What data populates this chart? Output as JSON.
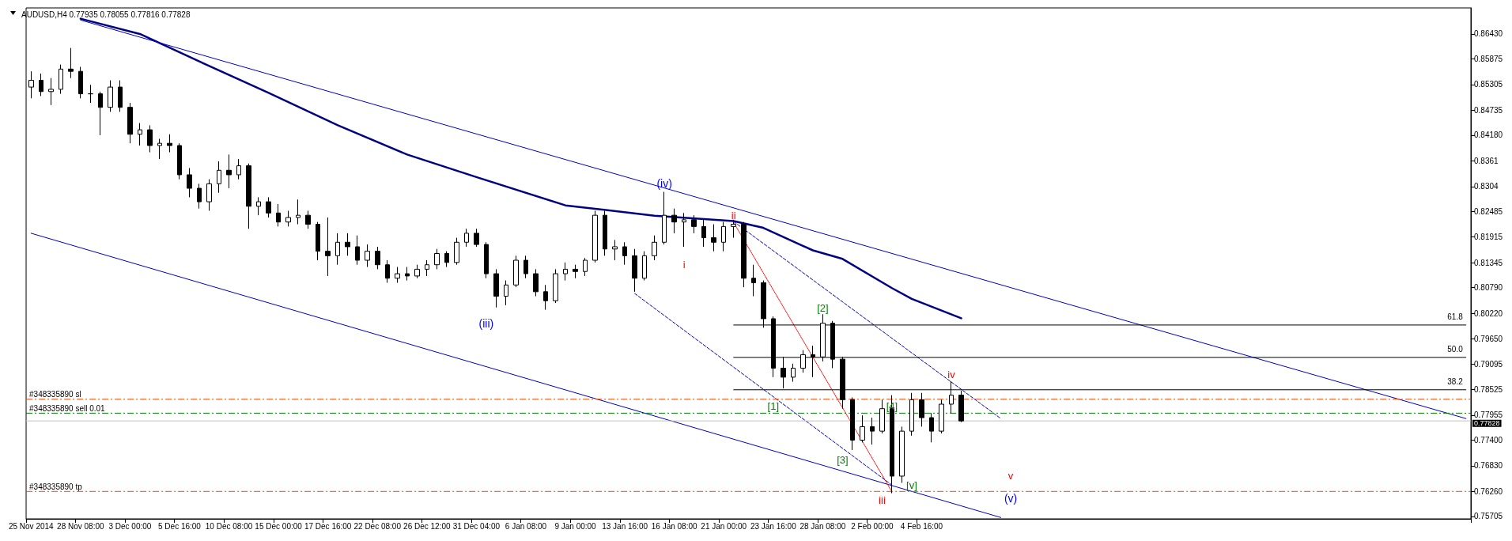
{
  "chart_data": {
    "type": "candlestick",
    "title": "AUDUSD,H4 0.77935 0.78055 0.77816 0.77828",
    "categories": [
      "25 Nov 2014",
      null,
      null,
      null,
      null,
      "28 Nov 08:00",
      null,
      null,
      null,
      null,
      "3 Dec 00:00",
      null,
      null,
      null,
      null,
      "5 Dec 16:00",
      null,
      null,
      null,
      null,
      "10 Dec 08:00",
      null,
      null,
      null,
      null,
      "15 Dec 00:00",
      null,
      null,
      null,
      null,
      "17 Dec 16:00",
      null,
      null,
      null,
      null,
      "22 Dec 08:00",
      null,
      null,
      null,
      null,
      "26 Dec 12:00",
      null,
      null,
      null,
      null,
      "31 Dec 04:00",
      null,
      null,
      null,
      null,
      "6 Jan 08:00",
      null,
      null,
      null,
      null,
      "9 Jan 00:00",
      null,
      null,
      null,
      null,
      "13 Jan 16:00",
      null,
      null,
      null,
      null,
      "16 Jan 08:00",
      null,
      null,
      null,
      null,
      "21 Jan 00:00",
      null,
      null,
      null,
      null,
      "23 Jan 16:00",
      null,
      null,
      null,
      null,
      "28 Jan 08:00",
      null,
      null,
      null,
      null,
      "2 Feb 00:00",
      null,
      null,
      null,
      null,
      "4 Feb 16:00",
      null,
      null,
      null,
      null,
      null,
      null,
      null,
      null,
      null,
      null,
      null,
      null,
      null,
      null,
      null,
      null,
      null,
      null,
      null,
      null,
      null,
      null,
      null,
      null,
      null,
      null,
      null,
      null,
      null,
      null,
      null,
      null,
      null,
      null,
      null,
      null,
      null,
      null,
      null,
      null,
      null,
      null,
      null,
      null,
      null,
      null,
      null,
      null,
      null,
      null,
      null,
      null,
      null,
      null,
      null
    ],
    "ohlc": [
      [
        0.8525,
        0.856,
        0.85,
        0.854
      ],
      [
        0.854,
        0.8555,
        0.8505,
        0.8515
      ],
      [
        0.8515,
        0.8545,
        0.8485,
        0.852
      ],
      [
        0.852,
        0.8575,
        0.851,
        0.8565
      ],
      [
        0.8565,
        0.8612,
        0.8545,
        0.856
      ],
      [
        0.856,
        0.857,
        0.85,
        0.851
      ],
      [
        0.851,
        0.853,
        0.849,
        0.851
      ],
      [
        0.851,
        0.8515,
        0.8418,
        0.848
      ],
      [
        0.848,
        0.854,
        0.847,
        0.8525
      ],
      [
        0.8525,
        0.854,
        0.847,
        0.848
      ],
      [
        0.848,
        0.849,
        0.84,
        0.842
      ],
      [
        0.842,
        0.8445,
        0.8395,
        0.843
      ],
      [
        0.843,
        0.844,
        0.838,
        0.8395
      ],
      [
        0.8395,
        0.841,
        0.8365,
        0.84
      ],
      [
        0.84,
        0.842,
        0.838,
        0.8395
      ],
      [
        0.8395,
        0.84,
        0.832,
        0.833
      ],
      [
        0.833,
        0.8345,
        0.828,
        0.83
      ],
      [
        0.83,
        0.831,
        0.8255,
        0.827
      ],
      [
        0.827,
        0.832,
        0.825,
        0.831
      ],
      [
        0.831,
        0.836,
        0.829,
        0.834
      ],
      [
        0.834,
        0.8375,
        0.83,
        0.833
      ],
      [
        0.833,
        0.8365,
        0.832,
        0.835
      ],
      [
        0.835,
        0.8355,
        0.821,
        0.826
      ],
      [
        0.826,
        0.828,
        0.824,
        0.827
      ],
      [
        0.827,
        0.828,
        0.8235,
        0.8245
      ],
      [
        0.8245,
        0.8265,
        0.8215,
        0.8225
      ],
      [
        0.8225,
        0.825,
        0.8215,
        0.8235
      ],
      [
        0.8235,
        0.8275,
        0.822,
        0.824
      ],
      [
        0.824,
        0.825,
        0.821,
        0.822
      ],
      [
        0.822,
        0.8225,
        0.814,
        0.816
      ],
      [
        0.816,
        0.8235,
        0.8105,
        0.815
      ],
      [
        0.815,
        0.82,
        0.813,
        0.818
      ],
      [
        0.818,
        0.82,
        0.815,
        0.817
      ],
      [
        0.817,
        0.8195,
        0.813,
        0.814
      ],
      [
        0.814,
        0.8175,
        0.8125,
        0.816
      ],
      [
        0.816,
        0.817,
        0.812,
        0.813
      ],
      [
        0.813,
        0.814,
        0.809,
        0.81
      ],
      [
        0.81,
        0.8125,
        0.809,
        0.811
      ],
      [
        0.811,
        0.8125,
        0.8095,
        0.8105
      ],
      [
        0.8105,
        0.813,
        0.81,
        0.812
      ],
      [
        0.812,
        0.814,
        0.8105,
        0.813
      ],
      [
        0.813,
        0.8165,
        0.812,
        0.8155
      ],
      [
        0.8155,
        0.816,
        0.8125,
        0.8135
      ],
      [
        0.8135,
        0.819,
        0.813,
        0.818
      ],
      [
        0.818,
        0.821,
        0.817,
        0.82
      ],
      [
        0.82,
        0.821,
        0.817,
        0.8175
      ],
      [
        0.8175,
        0.818,
        0.81,
        0.811
      ],
      [
        0.811,
        0.812,
        0.8035,
        0.806
      ],
      [
        0.806,
        0.8095,
        0.804,
        0.8085
      ],
      [
        0.8085,
        0.815,
        0.808,
        0.814
      ],
      [
        0.814,
        0.815,
        0.81,
        0.811
      ],
      [
        0.811,
        0.812,
        0.806,
        0.807
      ],
      [
        0.807,
        0.8085,
        0.803,
        0.805
      ],
      [
        0.805,
        0.812,
        0.8045,
        0.811
      ],
      [
        0.811,
        0.8135,
        0.8095,
        0.812
      ],
      [
        0.812,
        0.813,
        0.81,
        0.8115
      ],
      [
        0.8115,
        0.8145,
        0.8105,
        0.814
      ],
      [
        0.814,
        0.825,
        0.8135,
        0.824
      ],
      [
        0.824,
        0.825,
        0.815,
        0.8165
      ],
      [
        0.8165,
        0.8185,
        0.814,
        0.817
      ],
      [
        0.817,
        0.818,
        0.813,
        0.815
      ],
      [
        0.815,
        0.8165,
        0.807,
        0.81
      ],
      [
        0.81,
        0.816,
        0.8095,
        0.815
      ],
      [
        0.815,
        0.8195,
        0.814,
        0.818
      ],
      [
        0.818,
        0.8292,
        0.8175,
        0.824
      ],
      [
        0.824,
        0.8255,
        0.82,
        0.8225
      ],
      [
        0.8225,
        0.8245,
        0.817,
        0.823
      ],
      [
        0.823,
        0.824,
        0.82,
        0.8215
      ],
      [
        0.8215,
        0.823,
        0.817,
        0.819
      ],
      [
        0.819,
        0.822,
        0.816,
        0.818
      ],
      [
        0.818,
        0.8225,
        0.816,
        0.8215
      ],
      [
        0.8215,
        0.823,
        0.819,
        0.822
      ],
      [
        0.822,
        0.8225,
        0.808,
        0.81
      ],
      [
        0.81,
        0.813,
        0.806,
        0.809
      ],
      [
        0.809,
        0.8095,
        0.799,
        0.801
      ],
      [
        0.801,
        0.8015,
        0.788,
        0.79
      ],
      [
        0.79,
        0.7925,
        0.7855,
        0.788
      ],
      [
        0.788,
        0.791,
        0.787,
        0.79
      ],
      [
        0.79,
        0.794,
        0.789,
        0.793
      ],
      [
        0.793,
        0.795,
        0.788,
        0.7925
      ],
      [
        0.7925,
        0.802,
        0.7915,
        0.8
      ],
      [
        0.8,
        0.8005,
        0.79,
        0.792
      ],
      [
        0.792,
        0.7925,
        0.781,
        0.783
      ],
      [
        0.783,
        0.7835,
        0.7718,
        0.774
      ],
      [
        0.774,
        0.7795,
        0.7735,
        0.777
      ],
      [
        0.777,
        0.779,
        0.773,
        0.776
      ],
      [
        0.776,
        0.783,
        0.7755,
        0.781
      ],
      [
        0.781,
        0.784,
        0.7622,
        0.766
      ],
      [
        0.766,
        0.777,
        0.7645,
        0.776
      ],
      [
        0.776,
        0.7845,
        0.775,
        0.783
      ],
      [
        0.783,
        0.7845,
        0.777,
        0.779
      ],
      [
        0.779,
        0.78,
        0.7735,
        0.776
      ],
      [
        0.776,
        0.783,
        0.7755,
        0.782
      ],
      [
        0.782,
        0.7871,
        0.78,
        0.784
      ],
      [
        0.784,
        0.785,
        0.778,
        0.77828
      ],
      null,
      null,
      null,
      null,
      null,
      null,
      null,
      null,
      null,
      null,
      null,
      null,
      null,
      null,
      null,
      null,
      null,
      null,
      null,
      null,
      null,
      null,
      null,
      null,
      null,
      null,
      null,
      null,
      null,
      null,
      null,
      null,
      null,
      null,
      null,
      null,
      null,
      null,
      null,
      null,
      null,
      null,
      null,
      null,
      null,
      null,
      null,
      null,
      null,
      null,
      null
    ],
    "series": [
      {
        "type": "line",
        "color": "#000080",
        "line_style": "solid",
        "values": [
          null,
          null,
          null,
          null,
          null,
          0.8677,
          null,
          null,
          null,
          null,
          null,
          0.8643,
          null,
          null,
          null,
          null,
          null,
          0.8582,
          null,
          null,
          null,
          null,
          null,
          null,
          0.8512,
          null,
          null,
          null,
          null,
          null,
          null,
          0.844,
          null,
          null,
          null,
          null,
          null,
          null,
          0.8375,
          null,
          null,
          null,
          null,
          null,
          null,
          0.8325,
          null,
          null,
          null,
          null,
          null,
          null,
          null,
          null,
          0.8262,
          null,
          null,
          null,
          null,
          null,
          null,
          null,
          null,
          0.8239,
          null,
          null,
          null,
          null,
          null,
          null,
          null,
          0.8227,
          null,
          null,
          0.8212,
          null,
          null,
          null,
          null,
          0.8162,
          null,
          null,
          0.8143,
          null,
          null,
          null,
          null,
          0.8078,
          null,
          0.8054,
          null,
          null,
          null,
          null,
          0.8011,
          null,
          null,
          null,
          null,
          null,
          null,
          null,
          null,
          null,
          null,
          null,
          null,
          null,
          null,
          null,
          null,
          null,
          null,
          null,
          null,
          null,
          null,
          null,
          null,
          null,
          null,
          null,
          null,
          null,
          null,
          null,
          null,
          null,
          null,
          null,
          null,
          null,
          null,
          null,
          null,
          null,
          null,
          null,
          null,
          null,
          null,
          null,
          null,
          null,
          null,
          null
        ]
      },
      {
        "type": "line",
        "color": "#0000c0",
        "line_style": "solid",
        "values": [
          null,
          null,
          null,
          null,
          null,
          0.8674,
          null,
          null,
          null,
          null,
          null,
          null,
          null,
          null,
          null,
          null,
          null,
          null,
          null,
          null,
          null,
          null,
          null,
          null,
          null,
          null,
          null,
          null,
          null,
          null,
          null,
          null,
          null,
          null,
          null,
          null,
          null,
          null,
          null,
          null,
          null,
          null,
          null,
          null,
          null,
          null,
          null,
          null,
          null,
          null,
          null,
          null,
          null,
          null,
          null,
          null,
          null,
          null,
          null,
          null,
          null,
          null,
          null,
          null,
          null,
          null,
          null,
          null,
          null,
          null,
          null,
          null,
          null,
          null,
          null,
          null,
          null,
          null,
          null,
          null,
          null,
          null,
          null,
          null,
          null,
          null,
          null,
          null,
          null,
          null,
          null,
          null,
          null,
          null,
          null,
          null,
          null,
          null,
          null,
          null,
          null,
          null,
          null,
          null,
          null,
          null,
          null,
          null,
          null,
          null,
          null,
          null,
          null,
          null,
          null,
          null,
          null,
          null,
          null,
          null,
          null,
          null,
          null,
          null,
          null,
          null,
          null,
          null,
          null,
          null,
          null,
          null,
          null,
          null,
          null,
          null,
          null,
          null,
          null,
          null,
          null,
          null,
          null,
          null,
          null,
          0.7788
        ]
      },
      {
        "type": "line",
        "color": "#0000c0",
        "line_style": "solid",
        "values": [
          0.82,
          null,
          null,
          null,
          null,
          null,
          null,
          null,
          null,
          null,
          null,
          null,
          null,
          null,
          null,
          null,
          null,
          null,
          null,
          null,
          null,
          null,
          null,
          null,
          null,
          null,
          null,
          null,
          null,
          null,
          null,
          null,
          null,
          null,
          null,
          null,
          null,
          null,
          null,
          null,
          null,
          null,
          null,
          null,
          null,
          null,
          null,
          null,
          null,
          null,
          null,
          null,
          null,
          null,
          null,
          null,
          null,
          null,
          null,
          null,
          null,
          null,
          null,
          null,
          null,
          null,
          null,
          null,
          null,
          null,
          null,
          null,
          null,
          null,
          null,
          null,
          null,
          null,
          null,
          null,
          null,
          null,
          null,
          null,
          null,
          null,
          null,
          null,
          null,
          null,
          null,
          null,
          null,
          null,
          null,
          null,
          null,
          null,
          0.7568,
          null,
          null,
          null,
          null,
          null,
          null,
          null,
          null,
          null,
          null,
          null,
          null,
          null,
          null,
          null,
          null,
          null,
          null,
          null,
          null,
          null,
          null,
          null,
          null,
          null,
          null,
          null,
          null,
          null,
          null,
          null,
          null,
          null,
          null,
          null,
          null,
          null,
          null,
          null,
          null,
          null,
          null,
          null,
          null,
          null,
          null,
          null
        ]
      },
      {
        "type": "line",
        "color": "#0000c0",
        "line_style": "dashed",
        "values": [
          null,
          null,
          null,
          null,
          null,
          null,
          null,
          null,
          null,
          null,
          null,
          null,
          null,
          null,
          null,
          null,
          null,
          null,
          null,
          null,
          null,
          null,
          null,
          null,
          null,
          null,
          null,
          null,
          null,
          null,
          null,
          null,
          null,
          null,
          null,
          null,
          null,
          null,
          null,
          null,
          null,
          null,
          null,
          null,
          null,
          null,
          null,
          null,
          null,
          null,
          null,
          null,
          null,
          null,
          null,
          null,
          null,
          null,
          null,
          null,
          null,
          0.8066,
          null,
          null,
          null,
          null,
          null,
          null,
          null,
          null,
          null,
          null,
          null,
          null,
          null,
          null,
          null,
          null,
          null,
          null,
          null,
          null,
          null,
          null,
          null,
          null,
          null,
          0.764,
          null,
          null,
          null,
          null,
          null,
          null,
          null,
          null,
          null,
          null,
          null,
          null,
          null,
          null,
          null,
          null,
          null,
          null,
          null,
          null,
          null,
          null,
          null,
          null,
          null,
          null,
          null,
          null,
          null,
          null,
          null,
          null,
          null,
          null,
          null,
          null,
          null,
          null,
          null,
          null,
          null,
          null,
          null,
          null,
          null,
          null,
          null,
          null,
          null,
          null,
          null,
          null,
          null,
          null,
          null,
          null,
          null,
          null
        ]
      },
      {
        "type": "line",
        "color": "#0000c0",
        "line_style": "dashed",
        "values": [
          null,
          null,
          null,
          null,
          null,
          null,
          null,
          null,
          null,
          null,
          null,
          null,
          null,
          null,
          null,
          null,
          null,
          null,
          null,
          null,
          null,
          null,
          null,
          null,
          null,
          null,
          null,
          null,
          null,
          null,
          null,
          null,
          null,
          null,
          null,
          null,
          null,
          null,
          null,
          null,
          null,
          null,
          null,
          null,
          null,
          null,
          null,
          null,
          null,
          null,
          null,
          null,
          null,
          null,
          null,
          null,
          null,
          null,
          null,
          null,
          null,
          null,
          null,
          null,
          null,
          null,
          null,
          null,
          null,
          null,
          null,
          0.8226,
          null,
          null,
          null,
          null,
          null,
          null,
          null,
          null,
          null,
          null,
          null,
          null,
          null,
          null,
          null,
          null,
          null,
          null,
          null,
          null,
          null,
          null,
          null,
          null,
          null,
          null,
          0.7788,
          null,
          null,
          null,
          null,
          null,
          null,
          null,
          null,
          null,
          null,
          null,
          null,
          null,
          null,
          null,
          null,
          null,
          null,
          null,
          null,
          null,
          null,
          null,
          null,
          null,
          null,
          null,
          null,
          null,
          null,
          null,
          null,
          null,
          null,
          null,
          null,
          null,
          null,
          null,
          null,
          null,
          null,
          null,
          null,
          null,
          null,
          null
        ]
      },
      {
        "type": "line",
        "color": "#ff0000",
        "line_style": "dotted",
        "values": [
          null,
          null,
          null,
          null,
          null,
          null,
          null,
          null,
          null,
          null,
          null,
          null,
          null,
          null,
          null,
          null,
          null,
          null,
          null,
          null,
          null,
          null,
          null,
          null,
          null,
          null,
          null,
          null,
          null,
          null,
          null,
          null,
          null,
          null,
          null,
          null,
          null,
          null,
          null,
          null,
          null,
          null,
          null,
          null,
          null,
          null,
          null,
          null,
          null,
          null,
          null,
          null,
          null,
          null,
          null,
          null,
          null,
          null,
          null,
          null,
          null,
          null,
          null,
          null,
          null,
          null,
          null,
          null,
          null,
          null,
          null,
          0.8224,
          null,
          null,
          null,
          null,
          null,
          null,
          null,
          null,
          null,
          null,
          null,
          null,
          null,
          null,
          null,
          0.7625,
          null,
          null,
          null,
          null,
          null,
          null,
          null,
          null,
          null,
          null,
          null,
          null,
          null,
          null,
          null,
          null,
          null,
          null,
          null,
          null,
          null,
          null,
          null,
          null,
          null,
          null,
          null,
          null,
          null,
          null,
          null,
          null,
          null,
          null,
          null,
          null,
          null,
          null,
          null,
          null,
          null,
          null,
          null,
          null,
          null,
          null,
          null,
          null,
          null,
          null,
          null,
          null,
          null,
          null,
          null,
          null,
          null,
          null
        ]
      },
      {
        "type": "line",
        "name": "61.8",
        "color": "#000000",
        "line_style": "solid",
        "values": [
          null,
          null,
          null,
          null,
          null,
          null,
          null,
          null,
          null,
          null,
          null,
          null,
          null,
          null,
          null,
          null,
          null,
          null,
          null,
          null,
          null,
          null,
          null,
          null,
          null,
          null,
          null,
          null,
          null,
          null,
          null,
          null,
          null,
          null,
          null,
          null,
          null,
          null,
          null,
          null,
          null,
          null,
          null,
          null,
          null,
          null,
          null,
          null,
          null,
          null,
          null,
          null,
          null,
          null,
          null,
          null,
          null,
          null,
          null,
          null,
          null,
          null,
          null,
          null,
          null,
          null,
          null,
          null,
          null,
          null,
          null,
          0.7996,
          null,
          null,
          null,
          null,
          null,
          null,
          null,
          null,
          null,
          null,
          null,
          null,
          null,
          null,
          null,
          null,
          null,
          null,
          null,
          null,
          null,
          null,
          null,
          null,
          null,
          null,
          null,
          null,
          null,
          null,
          null,
          null,
          null,
          null,
          null,
          null,
          null,
          null,
          null,
          null,
          null,
          null,
          null,
          null,
          null,
          null,
          null,
          null,
          null,
          null,
          null,
          null,
          null,
          null,
          null,
          null,
          null,
          null,
          null,
          null,
          null,
          null,
          null,
          null,
          null,
          null,
          null,
          null,
          null,
          null,
          null,
          null,
          null,
          0.7996
        ]
      },
      {
        "type": "line",
        "name": "50.0",
        "color": "#000000",
        "line_style": "solid",
        "values": [
          null,
          null,
          null,
          null,
          null,
          null,
          null,
          null,
          null,
          null,
          null,
          null,
          null,
          null,
          null,
          null,
          null,
          null,
          null,
          null,
          null,
          null,
          null,
          null,
          null,
          null,
          null,
          null,
          null,
          null,
          null,
          null,
          null,
          null,
          null,
          null,
          null,
          null,
          null,
          null,
          null,
          null,
          null,
          null,
          null,
          null,
          null,
          null,
          null,
          null,
          null,
          null,
          null,
          null,
          null,
          null,
          null,
          null,
          null,
          null,
          null,
          null,
          null,
          null,
          null,
          null,
          null,
          null,
          null,
          null,
          null,
          0.7924,
          null,
          null,
          null,
          null,
          null,
          null,
          null,
          null,
          null,
          null,
          null,
          null,
          null,
          null,
          null,
          null,
          null,
          null,
          null,
          null,
          null,
          null,
          null,
          null,
          null,
          null,
          null,
          null,
          null,
          null,
          null,
          null,
          null,
          null,
          null,
          null,
          null,
          null,
          null,
          null,
          null,
          null,
          null,
          null,
          null,
          null,
          null,
          null,
          null,
          null,
          null,
          null,
          null,
          null,
          null,
          null,
          null,
          null,
          null,
          null,
          null,
          null,
          null,
          null,
          null,
          null,
          null,
          null,
          null,
          null,
          null,
          null,
          null,
          0.7924
        ]
      },
      {
        "type": "line",
        "name": "38.2",
        "color": "#000000",
        "line_style": "solid",
        "values": [
          null,
          null,
          null,
          null,
          null,
          null,
          null,
          null,
          null,
          null,
          null,
          null,
          null,
          null,
          null,
          null,
          null,
          null,
          null,
          null,
          null,
          null,
          null,
          null,
          null,
          null,
          null,
          null,
          null,
          null,
          null,
          null,
          null,
          null,
          null,
          null,
          null,
          null,
          null,
          null,
          null,
          null,
          null,
          null,
          null,
          null,
          null,
          null,
          null,
          null,
          null,
          null,
          null,
          null,
          null,
          null,
          null,
          null,
          null,
          null,
          null,
          null,
          null,
          null,
          null,
          null,
          null,
          null,
          null,
          null,
          null,
          0.7852,
          null,
          null,
          null,
          null,
          null,
          null,
          null,
          null,
          null,
          null,
          null,
          null,
          null,
          null,
          null,
          null,
          null,
          null,
          null,
          null,
          null,
          null,
          null,
          null,
          null,
          null,
          null,
          null,
          null,
          null,
          null,
          null,
          null,
          null,
          null,
          null,
          null,
          null,
          null,
          null,
          null,
          null,
          null,
          null,
          null,
          null,
          null,
          null,
          null,
          null,
          null,
          null,
          null,
          null,
          null,
          null,
          null,
          null,
          null,
          null,
          null,
          null,
          null,
          null,
          null,
          null,
          null,
          null,
          null,
          null,
          null,
          null,
          null,
          0.7852
        ]
      }
    ],
    "ref_lines": [
      {
        "axis": "y",
        "value": 0.7831,
        "label": "#348335890 sl",
        "color": "#ff4500",
        "line_style": "dashed"
      },
      {
        "axis": "y",
        "value": 0.78,
        "label": "#348335890 sell 0.01",
        "color": "#008000",
        "line_style": "dashed"
      },
      {
        "axis": "y",
        "value": 0.77828,
        "label": "0.77828",
        "color": "#c0c0c0",
        "line_style": "solid"
      },
      {
        "axis": "y",
        "value": 0.7626,
        "label": "#348335890 tp",
        "color": "#ff4500",
        "line_style": "dashed"
      }
    ],
    "annotations": [
      "(iii)",
      "(iv)",
      "i",
      "ii",
      "[1]",
      "[2]",
      "[3]",
      "iii",
      "[4]",
      "[v]",
      "iv",
      "v",
      "(v)"
    ],
    "ylim": [
      0.7565,
      0.8701
    ],
    "yticks": [
      {
        "value": 0.8643,
        "label": "0.86430"
      },
      0.85875,
      0.85305,
      0.84735,
      {
        "value": 0.8418,
        "label": "0.84180"
      },
      0.8361,
      0.8304,
      0.82485,
      0.81915,
      0.81345,
      {
        "value": 0.8079,
        "label": "0.80790"
      },
      {
        "value": 0.8022,
        "label": "0.80220"
      },
      {
        "value": 0.7965,
        "label": "0.79650"
      },
      0.79095,
      0.78525,
      0.77955,
      {
        "value": 0.774,
        "label": "0.77400"
      },
      {
        "value": 0.7683,
        "label": "0.76830"
      },
      {
        "value": 0.7626,
        "label": "0.76260"
      },
      0.75705
    ]
  }
}
